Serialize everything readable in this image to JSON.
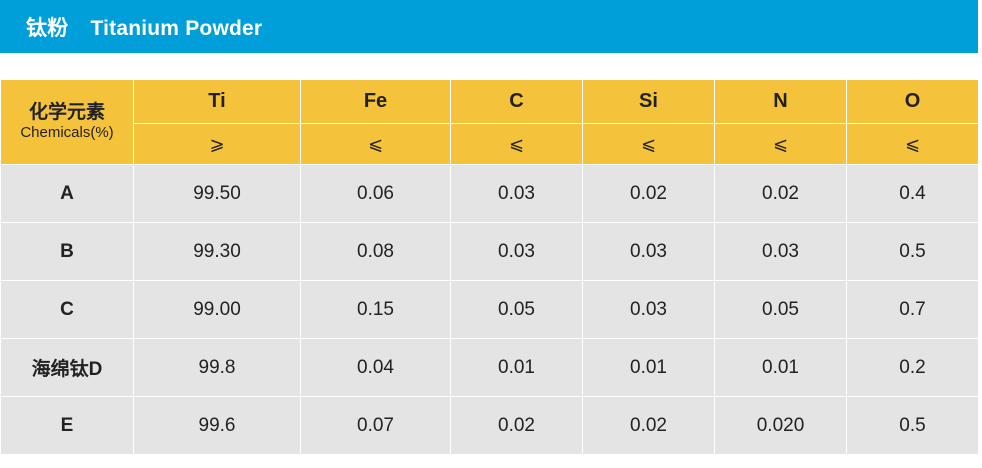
{
  "title": {
    "zh": "钛粉",
    "en": "Titanium Powder"
  },
  "colors": {
    "title_bar": "#009fd9",
    "header": "#f5c33b",
    "body": "#e4e4e4"
  },
  "table": {
    "corner": {
      "zh": "化学元素",
      "en": "Chemicals(%)"
    },
    "columns": [
      {
        "element": "Ti",
        "limit": "⩾"
      },
      {
        "element": "Fe",
        "limit": "⩽"
      },
      {
        "element": "C",
        "limit": "⩽"
      },
      {
        "element": "Si",
        "limit": "⩽"
      },
      {
        "element": "N",
        "limit": "⩽"
      },
      {
        "element": "O",
        "limit": "⩽"
      }
    ],
    "rows": [
      {
        "label": "A",
        "values": [
          "99.50",
          "0.06",
          "0.03",
          "0.02",
          "0.02",
          "0.4"
        ]
      },
      {
        "label": "B",
        "values": [
          "99.30",
          "0.08",
          "0.03",
          "0.03",
          "0.03",
          "0.5"
        ]
      },
      {
        "label": "C",
        "values": [
          "99.00",
          "0.15",
          "0.05",
          "0.03",
          "0.05",
          "0.7"
        ]
      },
      {
        "label": "海绵钛D",
        "values": [
          "99.8",
          "0.04",
          "0.01",
          "0.01",
          "0.01",
          "0.2"
        ]
      },
      {
        "label": "E",
        "values": [
          "99.6",
          "0.07",
          "0.02",
          "0.02",
          "0.020",
          "0.5"
        ]
      }
    ]
  }
}
